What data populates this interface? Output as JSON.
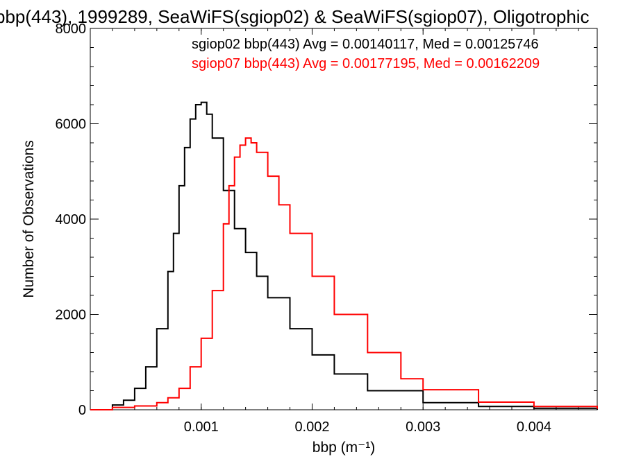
{
  "chart_data": {
    "type": "line",
    "title": "bbp(443), 1999289, SeaWiFS(sgiop02) & SeaWiFS(sgiop07), Oligotrophic",
    "xlabel": "bbp (m⁻¹)",
    "ylabel": "Number of Observations",
    "xlim": [
      0.0,
      0.00457
    ],
    "ylim": [
      0,
      8000
    ],
    "x_ticks": [
      0.001,
      0.002,
      0.003,
      0.004
    ],
    "x_tick_labels": [
      "0.001",
      "0.002",
      "0.003",
      "0.004"
    ],
    "y_ticks": [
      0,
      2000,
      4000,
      6000,
      8000
    ],
    "y_tick_labels": [
      "0",
      "2000",
      "4000",
      "6000",
      "8000"
    ],
    "grid": false,
    "legend_position": "top-right",
    "annotations": [
      {
        "text": "sgiop02 bbp(443) Avg = 0.00140117, Med = 0.00125746",
        "color": "#000000"
      },
      {
        "text": "sgiop07 bbp(443) Avg = 0.00177195, Med = 0.00162209",
        "color": "#ff0000"
      }
    ],
    "series": [
      {
        "color": "#000000",
        "x": [
          0.0,
          0.0002,
          0.0003,
          0.0004,
          0.0005,
          0.0006,
          0.0007,
          0.00075,
          0.0008,
          0.00085,
          0.0009,
          0.00095,
          0.001,
          0.00105,
          0.0011,
          0.0012,
          0.0013,
          0.0014,
          0.0015,
          0.0016,
          0.0018,
          0.002,
          0.0022,
          0.0025,
          0.003,
          0.0035,
          0.004,
          0.00457
        ],
        "y": [
          0,
          100,
          200,
          450,
          900,
          1700,
          2900,
          3700,
          4700,
          5500,
          6100,
          6400,
          6450,
          6200,
          5700,
          4600,
          3800,
          3300,
          2800,
          2350,
          1700,
          1150,
          750,
          400,
          150,
          70,
          30,
          0
        ]
      },
      {
        "color": "#ff0000",
        "x": [
          0.0,
          0.0002,
          0.0004,
          0.0006,
          0.0007,
          0.0008,
          0.0009,
          0.001,
          0.0011,
          0.0012,
          0.00125,
          0.0013,
          0.00135,
          0.0014,
          0.00145,
          0.0015,
          0.0016,
          0.0017,
          0.0018,
          0.002,
          0.0022,
          0.0025,
          0.0028,
          0.003,
          0.0035,
          0.004,
          0.00457
        ],
        "y": [
          0,
          50,
          80,
          150,
          250,
          450,
          900,
          1500,
          2500,
          3900,
          4700,
          5300,
          5550,
          5700,
          5600,
          5400,
          4900,
          4300,
          3700,
          2800,
          2000,
          1200,
          650,
          420,
          160,
          70,
          20
        ]
      }
    ]
  }
}
